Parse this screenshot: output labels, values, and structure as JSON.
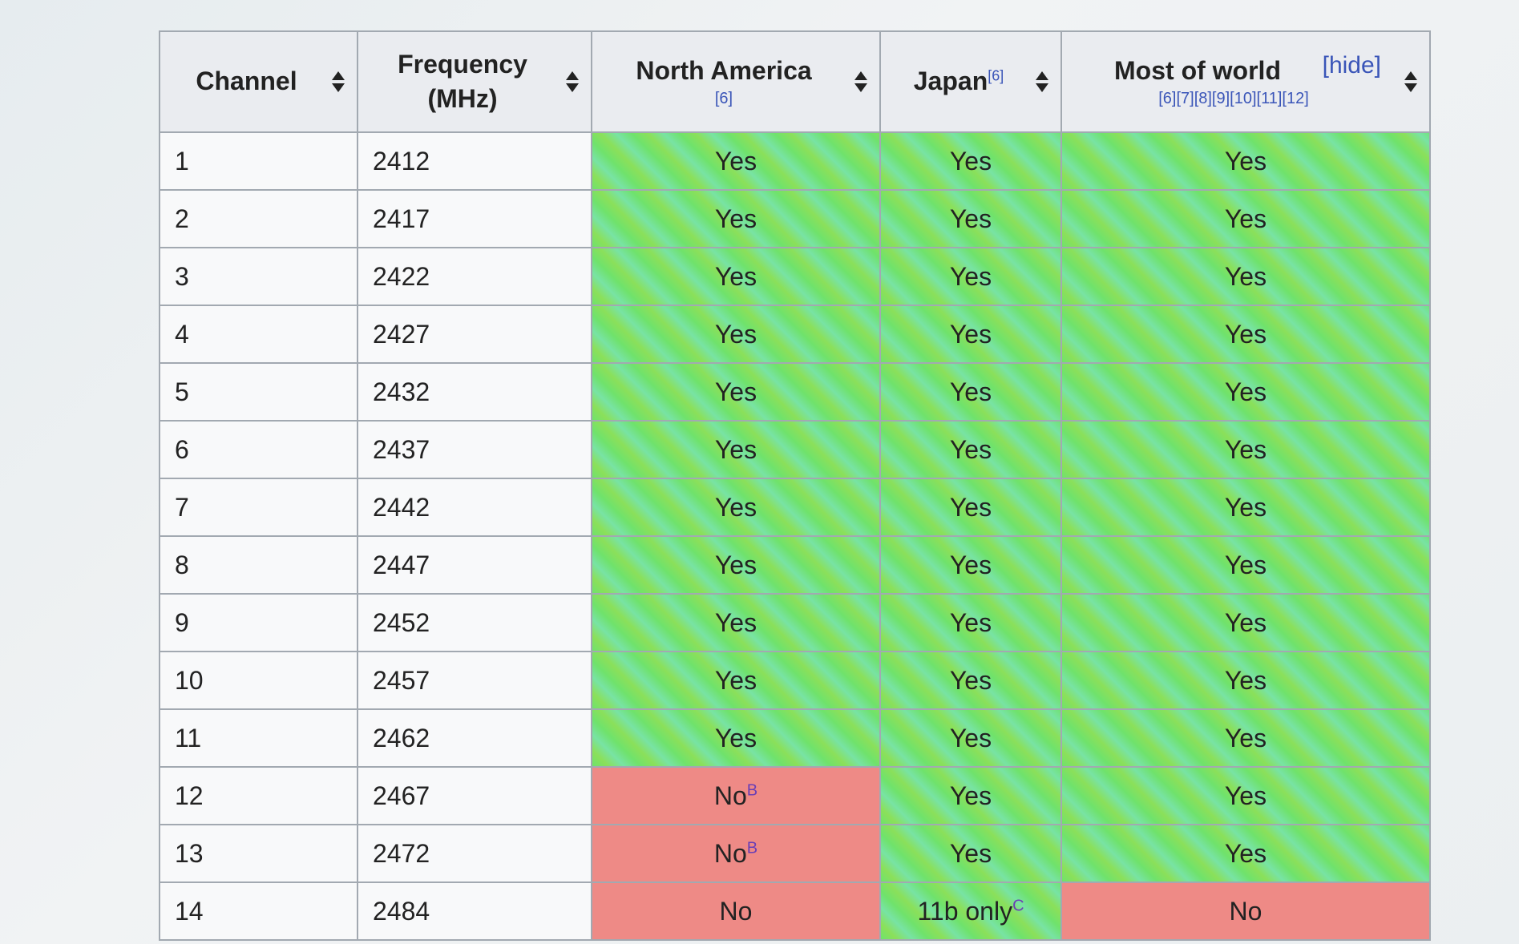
{
  "headers": {
    "channel": "Channel",
    "frequency_line1": "Frequency",
    "frequency_line2": "(MHz)",
    "north_america": "North America",
    "north_america_ref": "[6]",
    "japan": "Japan",
    "japan_ref": "[6]",
    "most_of_world": "Most of world",
    "most_of_world_refs": "[6][7][8][9][10][11][12]",
    "hide_link": "[hide]"
  },
  "rows": [
    {
      "channel": "1",
      "frequency": "2412",
      "north_america": "Yes",
      "na_note": "",
      "japan": "Yes",
      "jp_note": "",
      "world": "Yes"
    },
    {
      "channel": "2",
      "frequency": "2417",
      "north_america": "Yes",
      "na_note": "",
      "japan": "Yes",
      "jp_note": "",
      "world": "Yes"
    },
    {
      "channel": "3",
      "frequency": "2422",
      "north_america": "Yes",
      "na_note": "",
      "japan": "Yes",
      "jp_note": "",
      "world": "Yes"
    },
    {
      "channel": "4",
      "frequency": "2427",
      "north_america": "Yes",
      "na_note": "",
      "japan": "Yes",
      "jp_note": "",
      "world": "Yes"
    },
    {
      "channel": "5",
      "frequency": "2432",
      "north_america": "Yes",
      "na_note": "",
      "japan": "Yes",
      "jp_note": "",
      "world": "Yes"
    },
    {
      "channel": "6",
      "frequency": "2437",
      "north_america": "Yes",
      "na_note": "",
      "japan": "Yes",
      "jp_note": "",
      "world": "Yes"
    },
    {
      "channel": "7",
      "frequency": "2442",
      "north_america": "Yes",
      "na_note": "",
      "japan": "Yes",
      "jp_note": "",
      "world": "Yes"
    },
    {
      "channel": "8",
      "frequency": "2447",
      "north_america": "Yes",
      "na_note": "",
      "japan": "Yes",
      "jp_note": "",
      "world": "Yes"
    },
    {
      "channel": "9",
      "frequency": "2452",
      "north_america": "Yes",
      "na_note": "",
      "japan": "Yes",
      "jp_note": "",
      "world": "Yes"
    },
    {
      "channel": "10",
      "frequency": "2457",
      "north_america": "Yes",
      "na_note": "",
      "japan": "Yes",
      "jp_note": "",
      "world": "Yes"
    },
    {
      "channel": "11",
      "frequency": "2462",
      "north_america": "Yes",
      "na_note": "",
      "japan": "Yes",
      "jp_note": "",
      "world": "Yes"
    },
    {
      "channel": "12",
      "frequency": "2467",
      "north_america": "No",
      "na_note": "B",
      "japan": "Yes",
      "jp_note": "",
      "world": "Yes"
    },
    {
      "channel": "13",
      "frequency": "2472",
      "north_america": "No",
      "na_note": "B",
      "japan": "Yes",
      "jp_note": "",
      "world": "Yes"
    },
    {
      "channel": "14",
      "frequency": "2484",
      "north_america": "No",
      "na_note": "",
      "japan": "11b only",
      "jp_note": "C",
      "world": "No"
    }
  ],
  "colors": {
    "yes_cell": "#6fe26c",
    "no_cell": "#ee8a86",
    "header_bg": "#eaecf0",
    "link": "#3a55b8"
  }
}
